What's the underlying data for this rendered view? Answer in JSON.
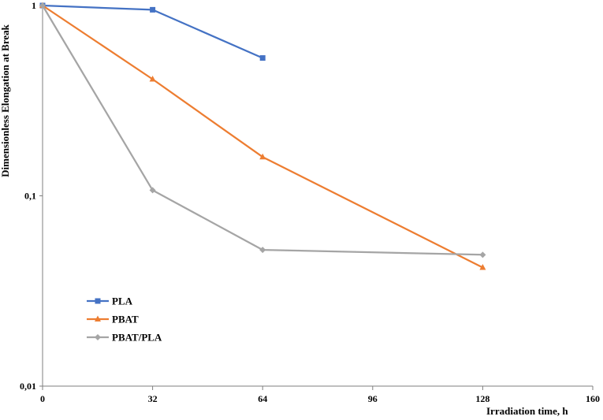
{
  "chart_data": {
    "type": "line",
    "title": "",
    "xlabel": "Irradiation time, h",
    "ylabel": "Dimensionless Elongation at Break",
    "x_ticks": [
      "0",
      "32",
      "64",
      "96",
      "128",
      "160"
    ],
    "y_ticks": [
      "0,01",
      "0,1",
      "1"
    ],
    "xlim": [
      0,
      160
    ],
    "ylim": [
      0.01,
      1
    ],
    "y_scale": "log",
    "grid": false,
    "legend_position": "lower-left",
    "series": [
      {
        "name": "PLA",
        "color": "#4472C4",
        "marker": "square",
        "x": [
          0,
          32,
          64
        ],
        "y": [
          1,
          0.95,
          0.53
        ]
      },
      {
        "name": "PBAT",
        "color": "#ED7D31",
        "marker": "triangle",
        "x": [
          0,
          32,
          64,
          128
        ],
        "y": [
          1,
          0.41,
          0.16,
          0.042
        ]
      },
      {
        "name": "PBAT/PLA",
        "color": "#A5A5A5",
        "marker": "diamond",
        "x": [
          0,
          32,
          64,
          128
        ],
        "y": [
          1,
          0.107,
          0.052,
          0.049
        ]
      }
    ]
  }
}
